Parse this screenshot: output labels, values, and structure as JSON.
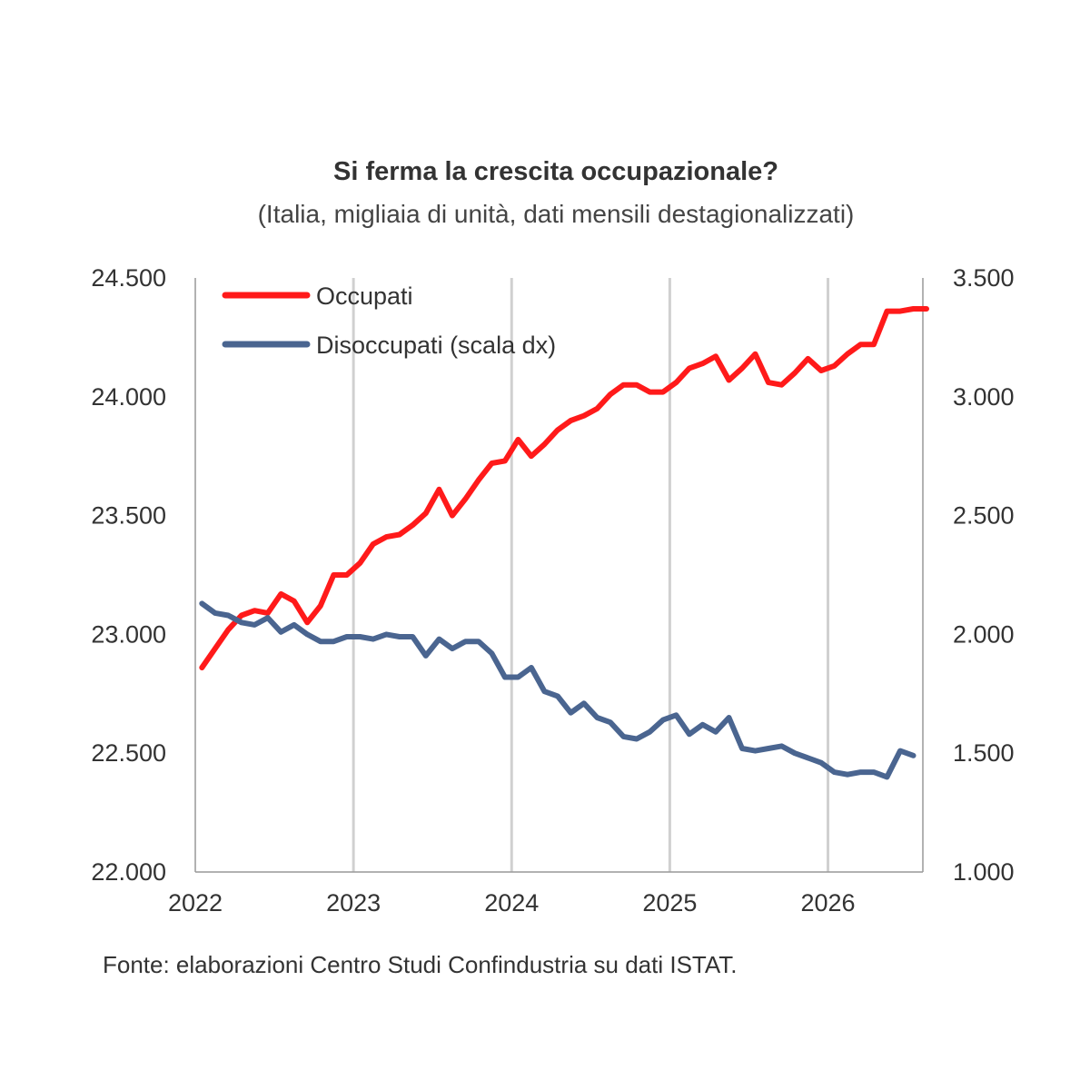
{
  "chart_data": {
    "type": "line",
    "title": "Si ferma la crescita occupazionale?",
    "subtitle": "(Italia, migliaia di unità, dati mensili destagionalizzati)",
    "source": "Fonte: elaborazioni Centro Studi Confindustria su dati ISTAT.",
    "x_tick_labels": [
      "2022",
      "2023",
      "2024",
      "2025",
      "2026"
    ],
    "x_range": [
      2022.0,
      2026.6
    ],
    "y_left": {
      "range": [
        22000,
        24500
      ],
      "tick_labels": [
        "22.000",
        "22.500",
        "23.000",
        "23.500",
        "24.000",
        "24.500"
      ],
      "tick_values": [
        22000,
        22500,
        23000,
        23500,
        24000,
        24500
      ]
    },
    "y_right": {
      "range": [
        1000,
        3500
      ],
      "tick_labels": [
        "1.000",
        "1.500",
        "2.000",
        "2.500",
        "3.000",
        "3.500"
      ],
      "tick_values": [
        1000,
        1500,
        2000,
        2500,
        3000,
        3500
      ]
    },
    "grid": "vertical",
    "legend_position": "top-left",
    "series": [
      {
        "name": "Occupati",
        "axis": "left",
        "color": "#ff1a1a",
        "x_start": 2022.0417,
        "step": 0.0833,
        "values": [
          22860,
          22940,
          23020,
          23080,
          23100,
          23090,
          23170,
          23140,
          23050,
          23120,
          23250,
          23250,
          23300,
          23380,
          23410,
          23420,
          23460,
          23510,
          23610,
          23500,
          23570,
          23650,
          23720,
          23730,
          23820,
          23750,
          23800,
          23860,
          23900,
          23920,
          23950,
          24010,
          24050,
          24050,
          24020,
          24020,
          24060,
          24120,
          24140,
          24170,
          24070,
          24120,
          24180,
          24060,
          24050,
          24100,
          24160,
          24110,
          24130,
          24180,
          24220,
          24220,
          24360,
          24360,
          24370,
          24370
        ]
      },
      {
        "name": "Disoccupati (scala dx)",
        "axis": "right",
        "color": "#4a6590",
        "x_start": 2022.0417,
        "step": 0.0833,
        "values": [
          2130,
          2090,
          2080,
          2050,
          2040,
          2070,
          2010,
          2040,
          2000,
          1970,
          1970,
          1990,
          1990,
          1980,
          2000,
          1990,
          1990,
          1910,
          1980,
          1940,
          1970,
          1970,
          1920,
          1820,
          1820,
          1860,
          1760,
          1740,
          1670,
          1710,
          1650,
          1630,
          1570,
          1560,
          1590,
          1640,
          1660,
          1580,
          1620,
          1590,
          1650,
          1520,
          1510,
          1520,
          1530,
          1500,
          1480,
          1460,
          1420,
          1410,
          1420,
          1420,
          1400,
          1510,
          1490
        ]
      }
    ]
  }
}
